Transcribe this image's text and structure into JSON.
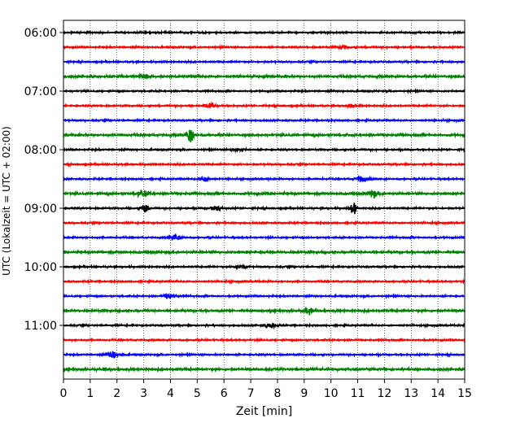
{
  "chart_data": {
    "type": "line",
    "title": "",
    "xlabel": "Zeit  [min]",
    "ylabel": "UTC (Lokalzeit = UTC + 02:00)",
    "xlim": [
      0,
      15
    ],
    "x_ticks": [
      0,
      1,
      2,
      3,
      4,
      5,
      6,
      7,
      8,
      9,
      10,
      11,
      12,
      13,
      14,
      15
    ],
    "y_tick_labels": [
      "06:00",
      "07:00",
      "08:00",
      "09:00",
      "10:00",
      "11:00"
    ],
    "trace_start_minutes": [
      360,
      375,
      390,
      405,
      420,
      435,
      450,
      465,
      480,
      495,
      510,
      525,
      540,
      555,
      570,
      585,
      600,
      615,
      630,
      645,
      660,
      675,
      690,
      705
    ],
    "trace_colors": [
      "#000000",
      "#ff0000",
      "#0000ff",
      "#008000"
    ],
    "grid": "vertical dotted",
    "events": [
      {
        "trace": 1,
        "x": 10.4,
        "amp": 0.35
      },
      {
        "trace": 3,
        "x": 3.0,
        "amp": 0.5
      },
      {
        "trace": 5,
        "x": 5.5,
        "amp": 0.35
      },
      {
        "trace": 5,
        "x": 10.8,
        "amp": 0.3
      },
      {
        "trace": 7,
        "x": 4.75,
        "amp": 1.4
      },
      {
        "trace": 8,
        "x": 6.5,
        "amp": 0.3
      },
      {
        "trace": 10,
        "x": 5.3,
        "amp": 0.4
      },
      {
        "trace": 10,
        "x": 11.2,
        "amp": 0.55
      },
      {
        "trace": 11,
        "x": 3.0,
        "amp": 0.6
      },
      {
        "trace": 11,
        "x": 11.6,
        "amp": 0.6
      },
      {
        "trace": 12,
        "x": 3.05,
        "amp": 1.1
      },
      {
        "trace": 12,
        "x": 10.85,
        "amp": 1.2
      },
      {
        "trace": 12,
        "x": 5.7,
        "amp": 0.4
      },
      {
        "trace": 14,
        "x": 4.2,
        "amp": 0.45
      },
      {
        "trace": 16,
        "x": 6.6,
        "amp": 0.3
      },
      {
        "trace": 18,
        "x": 4.0,
        "amp": 0.35
      },
      {
        "trace": 19,
        "x": 9.2,
        "amp": 0.5
      },
      {
        "trace": 20,
        "x": 7.7,
        "amp": 0.45
      },
      {
        "trace": 22,
        "x": 1.9,
        "amp": 0.65
      }
    ]
  }
}
